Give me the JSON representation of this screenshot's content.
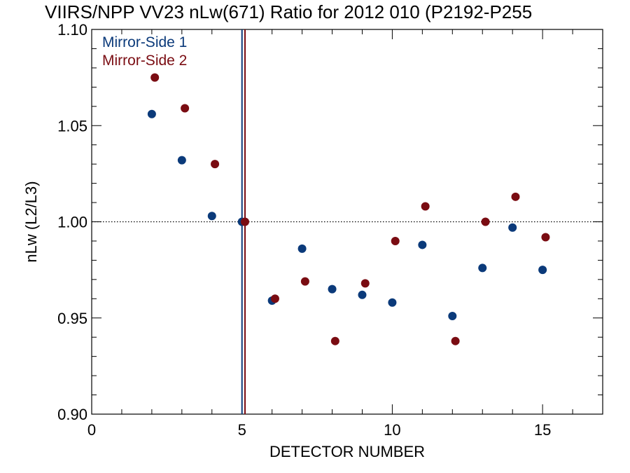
{
  "chart_data": {
    "type": "scatter",
    "title": "VIIRS/NPP VV23 nLw(671) Ratio for 2012 010 (P2192-P255",
    "xlabel": "DETECTOR NUMBER",
    "ylabel": "nLw (L2/L3)",
    "xlim": [
      0,
      17
    ],
    "ylim": [
      0.9,
      1.1
    ],
    "x_ticks": [
      0,
      5,
      10,
      15
    ],
    "x_tick_labels": [
      "0",
      "5",
      "10",
      "15"
    ],
    "y_ticks": [
      0.9,
      0.95,
      1.0,
      1.05,
      1.1
    ],
    "y_tick_labels": [
      "0.90",
      "0.95",
      "1.00",
      "1.05",
      "1.10"
    ],
    "reference_line_y": 1.0,
    "legend_position": "top-left",
    "series": [
      {
        "name": "Mirror-Side 1",
        "color": "#0b3a7a",
        "x": [
          2,
          3,
          4,
          5,
          6,
          7,
          8,
          9,
          10,
          11,
          12,
          13,
          14,
          15
        ],
        "y": [
          1.056,
          1.032,
          1.003,
          1.0,
          0.959,
          0.986,
          0.965,
          0.962,
          0.958,
          0.988,
          0.951,
          0.976,
          0.997,
          0.975
        ]
      },
      {
        "name": "Mirror-Side 2",
        "color": "#7a0c12",
        "x": [
          2.1,
          3.1,
          4.1,
          5.1,
          6.1,
          7.1,
          8.1,
          9.1,
          10.1,
          11.1,
          12.1,
          13.1,
          14.1,
          15.1
        ],
        "y": [
          1.075,
          1.059,
          1.03,
          1.0,
          0.96,
          0.969,
          0.938,
          0.968,
          0.99,
          1.008,
          0.938,
          1.0,
          1.013,
          0.992
        ]
      }
    ],
    "vertical_lines": [
      {
        "x": 5.0,
        "color": "#0b3a7a"
      },
      {
        "x": 5.1,
        "color": "#7a0c12"
      }
    ]
  }
}
